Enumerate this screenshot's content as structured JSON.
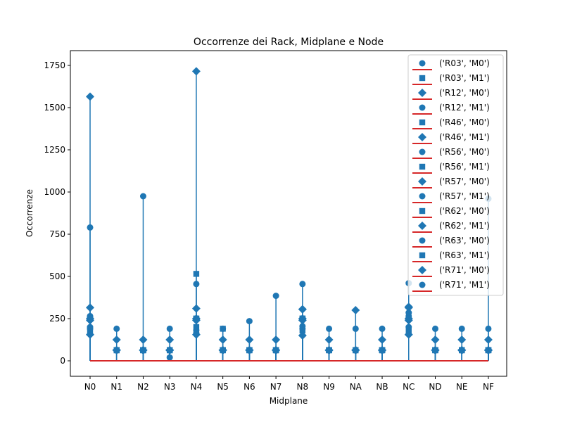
{
  "chart_data": {
    "type": "stem",
    "title": "Occorrenze dei Rack, Midplane e Node",
    "xlabel": "Midplane",
    "ylabel": "Occorrenze",
    "categories": [
      "N0",
      "N1",
      "N2",
      "N3",
      "N4",
      "N5",
      "N6",
      "N7",
      "N8",
      "N9",
      "NA",
      "NB",
      "NC",
      "ND",
      "NE",
      "NF"
    ],
    "ylim": [
      -75,
      1800
    ],
    "yticks": [
      0,
      250,
      500,
      750,
      1000,
      1250,
      1500,
      1750
    ],
    "stem_color": "#1f77b4",
    "baseline_color": "#d62728",
    "legend_position": "upper right",
    "series": [
      {
        "name": "('R03', 'M0')",
        "marker": "circle",
        "values": [
          190,
          63,
          63,
          63,
          250,
          63,
          63,
          63,
          250,
          63,
          63,
          63,
          250,
          63,
          63,
          63
        ]
      },
      {
        "name": "('R03', 'M1')",
        "marker": "square",
        "values": [
          250,
          63,
          63,
          63,
          515,
          190,
          63,
          63,
          250,
          63,
          63,
          63,
          250,
          63,
          63,
          63
        ]
      },
      {
        "name": "('R12', 'M0')",
        "marker": "diamond",
        "values": [
          1565,
          125,
          125,
          125,
          1715,
          125,
          125,
          125,
          305,
          125,
          300,
          125,
          315,
          125,
          125,
          125
        ]
      },
      {
        "name": "('R12', 'M1')",
        "marker": "circle",
        "values": [
          790,
          190,
          975,
          190,
          455,
          190,
          235,
          385,
          455,
          190,
          190,
          190,
          460,
          190,
          190,
          190
        ]
      },
      {
        "name": "('R46', 'M0')",
        "marker": "square",
        "values": [
          180,
          63,
          63,
          63,
          200,
          63,
          63,
          63,
          180,
          63,
          63,
          63,
          180,
          63,
          63,
          63
        ]
      },
      {
        "name": "('R46', 'M1')",
        "marker": "diamond",
        "values": [
          250,
          63,
          63,
          63,
          250,
          63,
          63,
          63,
          250,
          63,
          63,
          63,
          250,
          63,
          63,
          63
        ]
      },
      {
        "name": "('R56', 'M0')",
        "marker": "circle",
        "values": [
          265,
          63,
          63,
          63,
          180,
          63,
          63,
          63,
          190,
          63,
          63,
          63,
          265,
          63,
          63,
          63
        ]
      },
      {
        "name": "('R56', 'M1')",
        "marker": "square",
        "values": [
          250,
          63,
          63,
          63,
          250,
          63,
          63,
          63,
          250,
          63,
          63,
          63,
          250,
          63,
          63,
          63
        ]
      },
      {
        "name": "('R57', 'M0')",
        "marker": "diamond",
        "values": [
          155,
          63,
          63,
          63,
          155,
          63,
          63,
          63,
          150,
          63,
          63,
          63,
          155,
          63,
          63,
          63
        ]
      },
      {
        "name": "('R57', 'M1')",
        "marker": "circle",
        "values": [
          200,
          63,
          63,
          20,
          165,
          63,
          63,
          63,
          205,
          63,
          63,
          63,
          200,
          63,
          63,
          63
        ]
      },
      {
        "name": "('R62', 'M0')",
        "marker": "square",
        "values": [
          250,
          63,
          63,
          63,
          250,
          63,
          63,
          63,
          250,
          63,
          63,
          63,
          250,
          63,
          63,
          63
        ]
      },
      {
        "name": "('R62', 'M1')",
        "marker": "diamond",
        "values": [
          240,
          63,
          63,
          63,
          240,
          63,
          63,
          63,
          240,
          63,
          63,
          63,
          240,
          63,
          63,
          63
        ]
      },
      {
        "name": "('R63', 'M0')",
        "marker": "circle",
        "values": [
          250,
          63,
          63,
          63,
          250,
          63,
          63,
          63,
          250,
          63,
          63,
          63,
          250,
          63,
          63,
          63
        ]
      },
      {
        "name": "('R63', 'M1')",
        "marker": "square",
        "values": [
          250,
          63,
          63,
          63,
          250,
          63,
          63,
          63,
          250,
          63,
          63,
          63,
          250,
          63,
          63,
          63
        ]
      },
      {
        "name": "('R71', 'M0')",
        "marker": "diamond",
        "values": [
          315,
          63,
          63,
          63,
          310,
          63,
          63,
          63,
          305,
          63,
          63,
          63,
          320,
          63,
          63,
          63
        ]
      },
      {
        "name": "('R71', 'M1')",
        "marker": "circle",
        "values": [
          250,
          63,
          63,
          63,
          250,
          63,
          63,
          63,
          250,
          63,
          63,
          63,
          285,
          63,
          63,
          960
        ]
      }
    ]
  }
}
